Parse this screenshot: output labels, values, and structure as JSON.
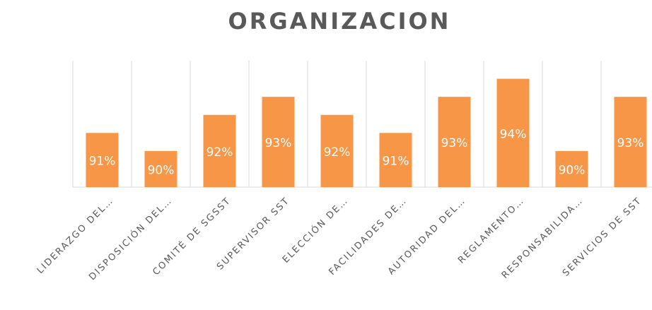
{
  "chart_data": {
    "type": "bar",
    "title": "ORGANIZACION",
    "categories": [
      "LIDERAZGO DEL…",
      "DISPOSICIÓN DEL…",
      "COMITÉ DE SGSST",
      "SUPERVISOR SST",
      "ELECCIÓN DE…",
      "FACILIDADES DE…",
      "AUTORIDAD DEL…",
      "REGLAMENTO…",
      "RESPONSABILIDA…",
      "SERVICIOS DE SST"
    ],
    "values": [
      91,
      90,
      92,
      93,
      92,
      91,
      93,
      94,
      90,
      93
    ],
    "value_labels": [
      "91%",
      "90%",
      "92%",
      "93%",
      "92%",
      "91%",
      "93%",
      "94%",
      "90%",
      "93%"
    ],
    "color": "#f79646",
    "ylim": [
      88,
      95
    ]
  }
}
